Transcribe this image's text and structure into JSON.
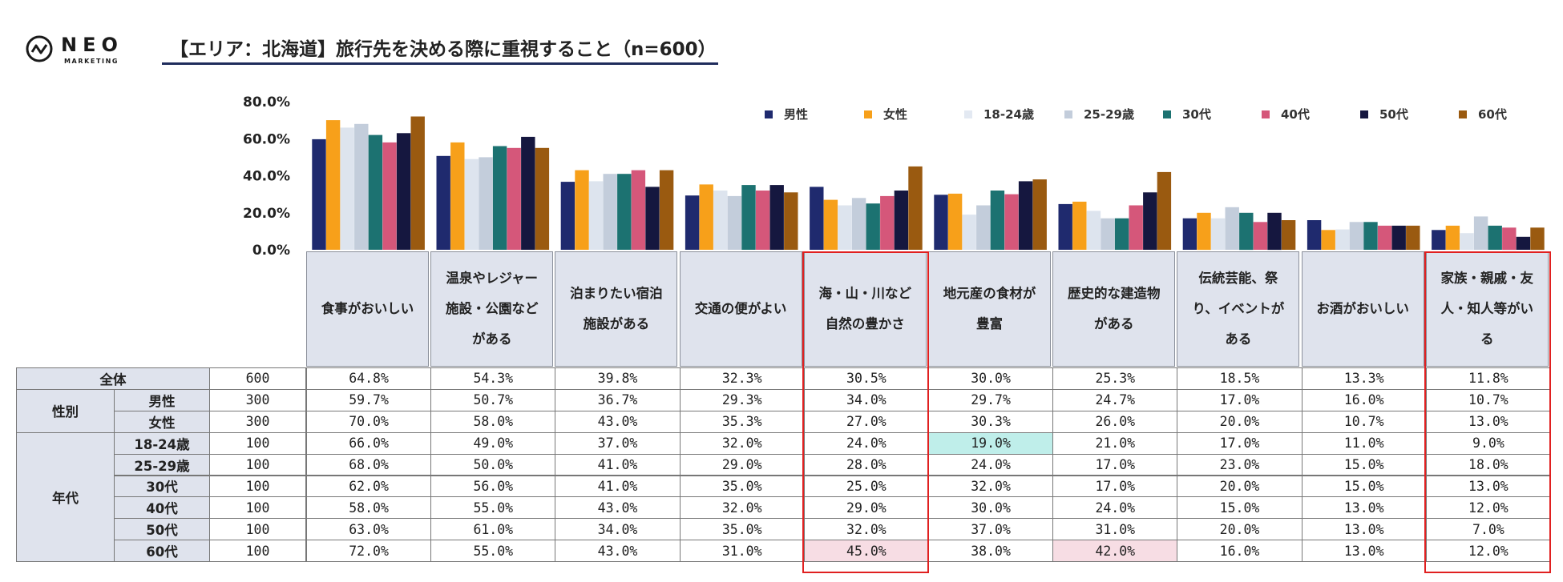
{
  "brand": {
    "name": "NEO",
    "sub": "MARKETING"
  },
  "title": "【エリア：北海道】旅行先を決める際に重視すること（n=600）",
  "colors": {
    "男性": "#1f2a6e",
    "女性": "#f7a01a",
    "18-24歳": "#dde4ee",
    "25-29歳": "#c3cddb",
    "30代": "#1c7271",
    "40代": "#d5577a",
    "50代": "#15173f",
    "60代": "#9a5a10"
  },
  "chart_data": {
    "type": "bar",
    "ylim": [
      0,
      80
    ],
    "yticks": [
      "80.0%",
      "60.0%",
      "40.0%",
      "20.0%",
      "0.0%"
    ],
    "legend_position": "top-right",
    "categories": [
      "食事がおいしい",
      "温泉やレジャー施設・公園などがある",
      "泊まりたい宿泊施設がある",
      "交通の便がよい",
      "海・山・川など自然の豊かさ",
      "地元産の食材が豊富",
      "歴史的な建造物がある",
      "伝統芸能、祭り、イベントがある",
      "お酒がおいしい",
      "家族・親戚・友人・知人等がいる"
    ],
    "series": [
      {
        "name": "男性",
        "values": [
          59.7,
          50.7,
          36.7,
          29.3,
          34.0,
          29.7,
          24.7,
          17.0,
          16.0,
          10.7
        ]
      },
      {
        "name": "女性",
        "values": [
          70.0,
          58.0,
          43.0,
          35.3,
          27.0,
          30.3,
          26.0,
          20.0,
          10.7,
          13.0
        ]
      },
      {
        "name": "18-24歳",
        "values": [
          66.0,
          49.0,
          37.0,
          32.0,
          24.0,
          19.0,
          21.0,
          17.0,
          11.0,
          9.0
        ]
      },
      {
        "name": "25-29歳",
        "values": [
          68.0,
          50.0,
          41.0,
          29.0,
          28.0,
          24.0,
          17.0,
          23.0,
          15.0,
          18.0
        ]
      },
      {
        "name": "30代",
        "values": [
          62.0,
          56.0,
          41.0,
          35.0,
          25.0,
          32.0,
          17.0,
          20.0,
          15.0,
          13.0
        ]
      },
      {
        "name": "40代",
        "values": [
          58.0,
          55.0,
          43.0,
          32.0,
          29.0,
          30.0,
          24.0,
          15.0,
          13.0,
          12.0
        ]
      },
      {
        "name": "50代",
        "values": [
          63.0,
          61.0,
          34.0,
          35.0,
          32.0,
          37.0,
          31.0,
          20.0,
          13.0,
          7.0
        ]
      },
      {
        "name": "60代",
        "values": [
          72.0,
          55.0,
          43.0,
          31.0,
          45.0,
          38.0,
          42.0,
          16.0,
          13.0,
          12.0
        ]
      }
    ]
  },
  "header_lines": [
    [
      "食事がおいしい"
    ],
    [
      "温泉やレジャー",
      "施設・公園など",
      "がある"
    ],
    [
      "泊まりたい宿泊",
      "施設がある"
    ],
    [
      "交通の便がよい"
    ],
    [
      "海・山・川など",
      "自然の豊かさ"
    ],
    [
      "地元産の食材が",
      "豊富"
    ],
    [
      "歴史的な建造物",
      "がある"
    ],
    [
      "伝統芸能、祭",
      "り、イベントが",
      "ある"
    ],
    [
      "お酒がおいしい"
    ],
    [
      "家族・親戚・友",
      "人・知人等がい",
      "る"
    ]
  ],
  "table": {
    "groups": [
      {
        "label": "全体",
        "rows": [
          {
            "label": "全体",
            "n": "600",
            "values": [
              "64.8%",
              "54.3%",
              "39.8%",
              "32.3%",
              "30.5%",
              "30.0%",
              "25.3%",
              "18.5%",
              "13.3%",
              "11.8%"
            ]
          }
        ]
      },
      {
        "label": "性別",
        "rows": [
          {
            "label": "男性",
            "n": "300",
            "values": [
              "59.7%",
              "50.7%",
              "36.7%",
              "29.3%",
              "34.0%",
              "29.7%",
              "24.7%",
              "17.0%",
              "16.0%",
              "10.7%"
            ]
          },
          {
            "label": "女性",
            "n": "300",
            "values": [
              "70.0%",
              "58.0%",
              "43.0%",
              "35.3%",
              "27.0%",
              "30.3%",
              "26.0%",
              "20.0%",
              "10.7%",
              "13.0%"
            ]
          }
        ]
      },
      {
        "label": "年代",
        "rows": [
          {
            "label": "18-24歳",
            "n": "100",
            "values": [
              "66.0%",
              "49.0%",
              "37.0%",
              "32.0%",
              "24.0%",
              "19.0%",
              "21.0%",
              "17.0%",
              "11.0%",
              "9.0%"
            ]
          },
          {
            "label": "25-29歳",
            "n": "100",
            "values": [
              "68.0%",
              "50.0%",
              "41.0%",
              "29.0%",
              "28.0%",
              "24.0%",
              "17.0%",
              "23.0%",
              "15.0%",
              "18.0%"
            ]
          },
          {
            "label": "30代",
            "n": "100",
            "values": [
              "62.0%",
              "56.0%",
              "41.0%",
              "35.0%",
              "25.0%",
              "32.0%",
              "17.0%",
              "20.0%",
              "15.0%",
              "13.0%"
            ]
          },
          {
            "label": "40代",
            "n": "100",
            "values": [
              "58.0%",
              "55.0%",
              "43.0%",
              "32.0%",
              "29.0%",
              "30.0%",
              "24.0%",
              "15.0%",
              "13.0%",
              "12.0%"
            ]
          },
          {
            "label": "50代",
            "n": "100",
            "values": [
              "63.0%",
              "61.0%",
              "34.0%",
              "35.0%",
              "32.0%",
              "37.0%",
              "31.0%",
              "20.0%",
              "13.0%",
              "7.0%"
            ]
          },
          {
            "label": "60代",
            "n": "100",
            "values": [
              "72.0%",
              "55.0%",
              "43.0%",
              "31.0%",
              "45.0%",
              "38.0%",
              "42.0%",
              "16.0%",
              "13.0%",
              "12.0%"
            ]
          }
        ]
      }
    ],
    "highlights": [
      {
        "row": 3,
        "col": 5,
        "type": "cyan"
      },
      {
        "row": 8,
        "col": 4,
        "type": "pink"
      },
      {
        "row": 8,
        "col": 6,
        "type": "pink"
      }
    ],
    "boxed_columns": [
      4,
      9
    ]
  }
}
